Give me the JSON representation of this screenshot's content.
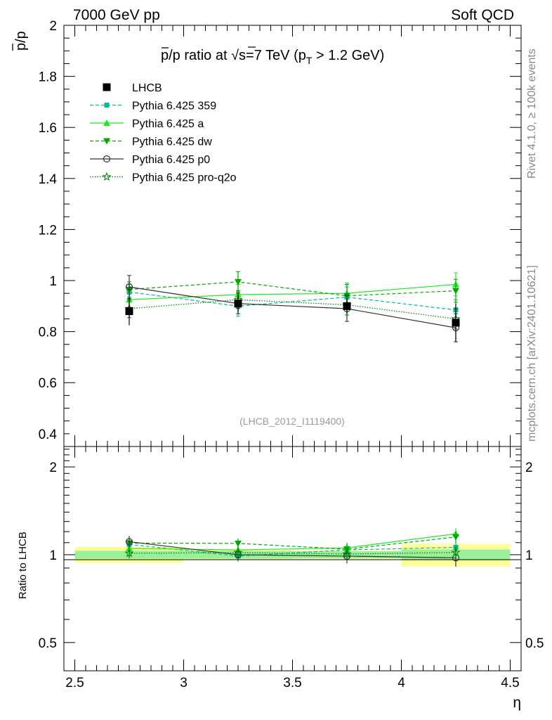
{
  "header": {
    "left": "7000 GeV pp",
    "right": "Soft QCD"
  },
  "side_labels": {
    "rivet": "Rivet 4.1.0, ≥ 100k events",
    "mcplots": "mcplots.cern.ch [arXiv:2401.10621]"
  },
  "colors": {
    "data": "#000000",
    "p359": "#00b89a",
    "pa": "#1ee81e",
    "pdw": "#00a800",
    "pp0": "#303030",
    "pq2o": "#007a00",
    "band_inner": "#99f099",
    "band_outer": "#ffff99"
  },
  "chart_data": {
    "type": "line",
    "title": "p̅/p ratio at √s=7 TeV (p_T > 1.2 GeV)",
    "title_parts": {
      "pbar": "p",
      "rest1": "/p ratio at ",
      "sqrt": "√",
      "s": "s",
      "rest2": "=7 TeV (p",
      "sub": "T",
      "rest3": " > 1.2 GeV)"
    },
    "ylabel": "p/p",
    "ratio_ylabel": "Ratio to LHCB",
    "xlabel": "η",
    "analysis_id": "(LHCB_2012_I1119400)",
    "xlim": [
      2.45,
      4.55
    ],
    "ylim": [
      0.35,
      2.0
    ],
    "ratio_ylim": [
      0.4,
      2.35
    ],
    "x_ticks": [
      "2.5",
      "3",
      "3.5",
      "4",
      "4.5"
    ],
    "y_ticks": [
      "0.4",
      "0.6",
      "0.8",
      "1",
      "1.2",
      "1.4",
      "1.6",
      "1.8",
      "2"
    ],
    "ratio_y_ticks": [
      "0.5",
      "1",
      "2"
    ],
    "bins": [
      [
        2.5,
        3.0
      ],
      [
        3.0,
        3.5
      ],
      [
        3.5,
        4.0
      ],
      [
        4.0,
        4.5
      ]
    ],
    "x": [
      2.75,
      3.25,
      3.75,
      4.25
    ],
    "data": {
      "name": "LHCB",
      "values": [
        0.88,
        0.91,
        0.9,
        0.835
      ],
      "err_inner": [
        0.028,
        0.028,
        0.025,
        0.035
      ],
      "err_outer": [
        0.055,
        0.035,
        0.03,
        0.075
      ]
    },
    "series": [
      {
        "name": "Pythia 6.425 359",
        "key": "p359",
        "style": "dashed",
        "marker": "square-small",
        "values": [
          0.955,
          0.9,
          0.935,
          0.885
        ],
        "err": [
          0.03,
          0.04,
          0.04,
          0.04
        ]
      },
      {
        "name": "Pythia 6.425 a",
        "key": "pa",
        "style": "solid",
        "marker": "triangle-up",
        "values": [
          0.925,
          0.945,
          0.95,
          0.985
        ],
        "err": [
          0.03,
          0.04,
          0.04,
          0.045
        ]
      },
      {
        "name": "Pythia 6.425 dw",
        "key": "pdw",
        "style": "dashed",
        "marker": "triangle-down",
        "values": [
          0.965,
          0.995,
          0.94,
          0.96
        ],
        "err": [
          0.03,
          0.04,
          0.045,
          0.045
        ]
      },
      {
        "name": "Pythia 6.425 p0",
        "key": "pp0",
        "style": "solid",
        "marker": "circle-open",
        "values": [
          0.975,
          0.91,
          0.89,
          0.815
        ],
        "err": [
          0.045,
          0.04,
          0.05,
          0.055
        ]
      },
      {
        "name": "Pythia 6.425 pro-q2o",
        "key": "pq2o",
        "style": "dotted",
        "marker": "star-open",
        "values": [
          0.89,
          0.925,
          0.905,
          0.85
        ],
        "err": [
          0.035,
          0.035,
          0.04,
          0.04
        ]
      }
    ]
  }
}
